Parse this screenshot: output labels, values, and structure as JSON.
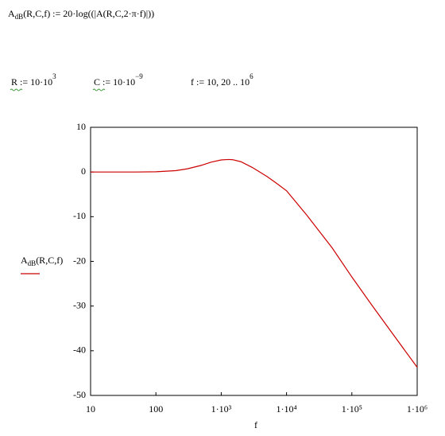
{
  "worksheet": {
    "definition": {
      "name": "A",
      "subscript": "dB",
      "expression": "(R,C,f) := 20·log((|A(R,C,2·π·f)|))"
    },
    "variables": [
      {
        "name": "R",
        "assign": " := 10·10",
        "exponent": "3"
      },
      {
        "name": "C",
        "assign": " := 10·10",
        "exponent": "−9"
      },
      {
        "name": "f",
        "assign": " := 10, 20 .. 10",
        "exponent": "6"
      }
    ]
  },
  "chart_data": {
    "type": "line",
    "log_x": true,
    "grid": false,
    "x_label": "f",
    "y_label": {
      "name": "A",
      "subscript": "dB",
      "args": "(R,C,f)"
    },
    "x": [
      10,
      20,
      50,
      100,
      200,
      300,
      500,
      700,
      1000,
      1300,
      1500,
      2000,
      3000,
      5000,
      7000,
      10000,
      20000,
      50000,
      100000,
      200000,
      500000,
      1000000
    ],
    "series": [
      {
        "color": "#cc0000",
        "values": [
          0,
          0,
          0,
          0.05,
          0.3,
          0.7,
          1.5,
          2.2,
          2.7,
          2.8,
          2.75,
          2.3,
          1.0,
          -1.0,
          -2.5,
          -4.2,
          -9.5,
          -17,
          -23.5,
          -29.7,
          -37.7,
          -43.7
        ]
      }
    ],
    "xlim": [
      10,
      1000000
    ],
    "ylim": [
      -50,
      10
    ],
    "xticks": [
      10,
      100,
      {
        "value": 1000,
        "label": "1·10³"
      },
      {
        "value": 10000,
        "label": "1·10⁴"
      },
      {
        "value": 100000,
        "label": "1·10⁵"
      },
      {
        "value": 1000000,
        "label": "1·10⁶"
      }
    ],
    "yticks": [
      10,
      0,
      -10,
      -20,
      -30,
      -40,
      -50
    ]
  }
}
